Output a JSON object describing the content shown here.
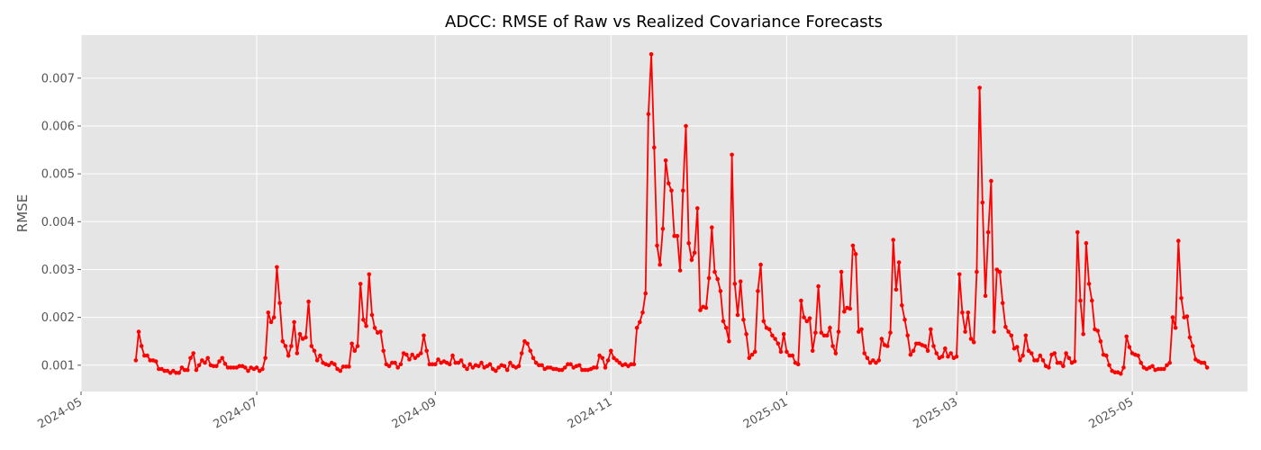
{
  "chart_data": {
    "type": "line",
    "title": "ADCC: RMSE of Raw vs Realized Covariance Forecasts",
    "xlabel": "",
    "ylabel": "RMSE",
    "xlim": [
      "2024-05-01",
      "2025-06-10"
    ],
    "ylim": [
      0.00045,
      0.0079
    ],
    "x_ticks": [
      "2024-05",
      "2024-07",
      "2024-09",
      "2024-11",
      "2025-01",
      "2025-03",
      "2025-05"
    ],
    "y_ticks": [
      "0.001",
      "0.002",
      "0.003",
      "0.004",
      "0.005",
      "0.006",
      "0.007"
    ],
    "grid": true,
    "color": "#ff0000",
    "background": "#e5e5e5",
    "series": [
      {
        "start_date": "2024-05-20",
        "values": [
          0.0011,
          0.0017,
          0.0014,
          0.0012,
          0.0012,
          0.0011,
          0.0011,
          0.00108,
          0.00092,
          0.00092,
          0.00088,
          0.00088,
          0.00084,
          0.00088,
          0.00084,
          0.00084,
          0.00095,
          0.0009,
          0.0009,
          0.00115,
          0.00125,
          0.0009,
          0.001,
          0.0011,
          0.00105,
          0.00115,
          0.001,
          0.00098,
          0.00098,
          0.00108,
          0.00115,
          0.00103,
          0.00095,
          0.00095,
          0.00095,
          0.00095,
          0.00098,
          0.00098,
          0.00095,
          0.00088,
          0.00095,
          0.00092,
          0.00095,
          0.00088,
          0.00092,
          0.00115,
          0.0021,
          0.0019,
          0.002,
          0.00305,
          0.0023,
          0.0015,
          0.0014,
          0.0012,
          0.0014,
          0.0019,
          0.00125,
          0.00165,
          0.00155,
          0.00158,
          0.00233,
          0.0014,
          0.0013,
          0.0011,
          0.0012,
          0.00105,
          0.00102,
          0.001,
          0.00105,
          0.00102,
          0.00092,
          0.00088,
          0.00097,
          0.00097,
          0.00097,
          0.00145,
          0.0013,
          0.0014,
          0.0027,
          0.00195,
          0.00182,
          0.0029,
          0.00205,
          0.00178,
          0.00168,
          0.0017,
          0.0013,
          0.00102,
          0.00098,
          0.00105,
          0.00105,
          0.00095,
          0.00102,
          0.00125,
          0.00122,
          0.00112,
          0.00122,
          0.00115,
          0.0012,
          0.00125,
          0.00162,
          0.0013,
          0.00102,
          0.00102,
          0.00102,
          0.00112,
          0.00105,
          0.00108,
          0.00105,
          0.00102,
          0.0012,
          0.00105,
          0.00105,
          0.0011,
          0.00098,
          0.00092,
          0.00102,
          0.00095,
          0.001,
          0.00098,
          0.00105,
          0.00095,
          0.00098,
          0.00102,
          0.00092,
          0.00088,
          0.00095,
          0.001,
          0.00098,
          0.0009,
          0.00105,
          0.00098,
          0.00095,
          0.00098,
          0.00125,
          0.0015,
          0.00145,
          0.0013,
          0.00115,
          0.00105,
          0.001,
          0.001,
          0.00092,
          0.00095,
          0.00095,
          0.00092,
          0.00092,
          0.0009,
          0.0009,
          0.00095,
          0.00102,
          0.00102,
          0.00095,
          0.00098,
          0.001,
          0.0009,
          0.0009,
          0.0009,
          0.00092,
          0.00095,
          0.00095,
          0.0012,
          0.00115,
          0.00095,
          0.0011,
          0.0013,
          0.00115,
          0.0011,
          0.00105,
          0.001,
          0.00102,
          0.00098,
          0.00102,
          0.00102,
          0.00178,
          0.0019,
          0.0021,
          0.0025,
          0.00625,
          0.0075,
          0.00555,
          0.0035,
          0.0031,
          0.00385,
          0.00528,
          0.0048,
          0.00465,
          0.0037,
          0.0037,
          0.00298,
          0.00465,
          0.006,
          0.00355,
          0.0032,
          0.00335,
          0.00428,
          0.00215,
          0.00222,
          0.0022,
          0.00282,
          0.00388,
          0.00295,
          0.0028,
          0.00255,
          0.00192,
          0.00178,
          0.0015,
          0.0054,
          0.0027,
          0.00205,
          0.00275,
          0.00195,
          0.00165,
          0.00115,
          0.00122,
          0.00128,
          0.00255,
          0.0031,
          0.00192,
          0.00178,
          0.00175,
          0.00162,
          0.00155,
          0.00145,
          0.00128,
          0.00165,
          0.00128,
          0.0012,
          0.0012,
          0.00105,
          0.00102,
          0.00235,
          0.002,
          0.00192,
          0.00198,
          0.0013,
          0.00168,
          0.00265,
          0.00168,
          0.00162,
          0.00162,
          0.00178,
          0.0014,
          0.00125,
          0.0017,
          0.00295,
          0.00212,
          0.0022,
          0.00218,
          0.0035,
          0.00332,
          0.0017,
          0.00175,
          0.00125,
          0.00115,
          0.00105,
          0.0011,
          0.00105,
          0.0011,
          0.00155,
          0.00142,
          0.0014,
          0.00168,
          0.00362,
          0.00258,
          0.00315,
          0.00225,
          0.00195,
          0.00162,
          0.00122,
          0.0013,
          0.00145,
          0.00145,
          0.00142,
          0.0014,
          0.0013,
          0.00175,
          0.0014,
          0.00125,
          0.00115,
          0.00118,
          0.00135,
          0.00118,
          0.00125,
          0.00115,
          0.00118,
          0.0029,
          0.0021,
          0.0017,
          0.0021,
          0.00155,
          0.00148,
          0.00295,
          0.0068,
          0.0044,
          0.00245,
          0.00378,
          0.00485,
          0.0017,
          0.003,
          0.00295,
          0.0023,
          0.0018,
          0.0017,
          0.00162,
          0.00135,
          0.00138,
          0.0011,
          0.0012,
          0.00162,
          0.0013,
          0.00125,
          0.0011,
          0.0011,
          0.0012,
          0.0011,
          0.00098,
          0.00095,
          0.00122,
          0.00125,
          0.00105,
          0.00105,
          0.00098,
          0.00125,
          0.00115,
          0.00105,
          0.00108,
          0.00378,
          0.00235,
          0.00165,
          0.00355,
          0.0027,
          0.00235,
          0.00175,
          0.00172,
          0.0015,
          0.00122,
          0.0012,
          0.001,
          0.00088,
          0.00085,
          0.00085,
          0.00082,
          0.00095,
          0.0016,
          0.00138,
          0.00125,
          0.00122,
          0.0012,
          0.00105,
          0.00095,
          0.00092,
          0.00095,
          0.00098,
          0.0009,
          0.00092,
          0.00092,
          0.00092,
          0.001,
          0.00105,
          0.002,
          0.00178,
          0.0036,
          0.0024,
          0.002,
          0.00202,
          0.00158,
          0.0014,
          0.00112,
          0.00108,
          0.00105,
          0.00105,
          0.00095
        ]
      }
    ]
  }
}
